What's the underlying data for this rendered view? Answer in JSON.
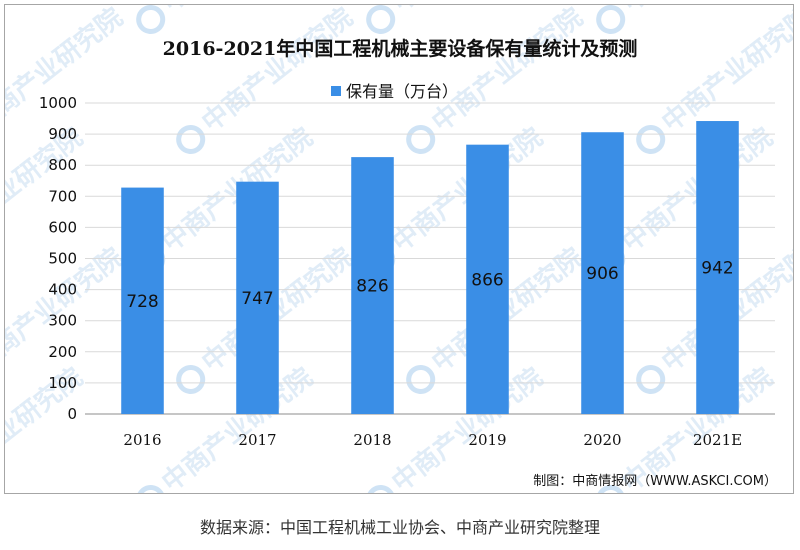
{
  "chart_data": {
    "type": "bar",
    "title": "2016-2021年中国工程机械主要设备保有量统计及预测",
    "categories": [
      "2016",
      "2017",
      "2018",
      "2019",
      "2020",
      "2021E"
    ],
    "series": [
      {
        "name": "保有量（万台）",
        "values": [
          728,
          747,
          826,
          866,
          906,
          942
        ]
      }
    ],
    "ylim": [
      0,
      1000
    ],
    "yticks": [
      0,
      100,
      200,
      300,
      400,
      500,
      600,
      700,
      800,
      900,
      1000
    ],
    "grid": true,
    "legend": "top-center",
    "data_labels": "inside",
    "bar_color": "#3a8ee6"
  },
  "credit": "制图：中商情报网（WWW.ASKCI.COM）",
  "source": "数据来源：中国工程机械工业协会、中商产业研究院整理",
  "watermark": "中商产业研究院"
}
